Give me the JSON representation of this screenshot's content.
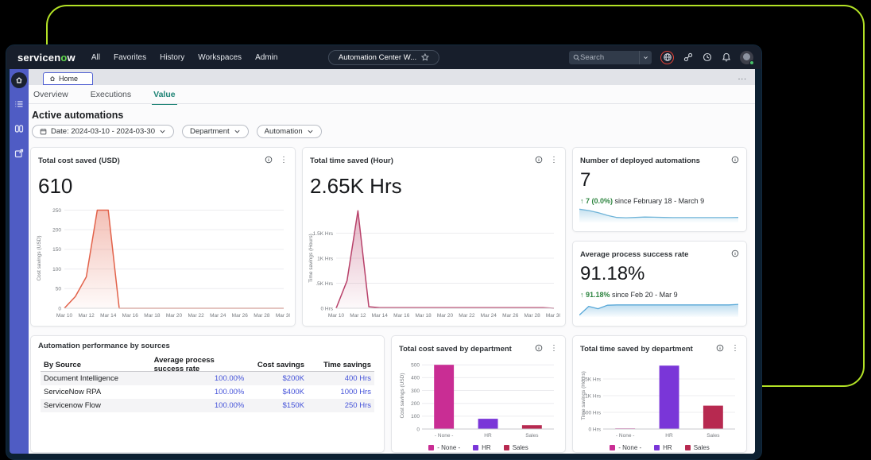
{
  "header": {
    "logo_prefix": "servicen",
    "logo_accent": "o",
    "logo_suffix": "w",
    "nav": [
      "All",
      "Favorites",
      "History",
      "Workspaces",
      "Admin"
    ],
    "workspace_pill": "Automation Center W...",
    "search_placeholder": "Search"
  },
  "tab_strip": {
    "home_tab": "Home",
    "overflow": "..."
  },
  "page": {
    "tabs": [
      "Overview",
      "Executions",
      "Value"
    ],
    "active_tab": "Value",
    "title": "Active automations",
    "filters": {
      "date": "Date: 2024-03-10 - 2024-03-30",
      "department": "Department",
      "automation": "Automation"
    }
  },
  "cards": {
    "cost": {
      "title": "Total cost saved (USD)",
      "value": "610"
    },
    "time": {
      "title": "Total time saved (Hour)",
      "value": "2.65K Hrs"
    },
    "deployed": {
      "title": "Number of deployed automations",
      "value": "7",
      "trend_change": "↑ 7 (0.0%)",
      "trend_period": "since February 18 - March 9"
    },
    "success": {
      "title": "Average process success rate",
      "value": "91.18%",
      "trend_change": "↑ 91.18%",
      "trend_period": "since Feb 20 - Mar 9"
    },
    "sources": {
      "title": "Automation performance by sources"
    },
    "cost_dept": {
      "title": "Total cost saved by department"
    },
    "time_dept": {
      "title": "Total time saved by department"
    }
  },
  "table": {
    "columns": [
      "By Source",
      "Average process success rate",
      "Cost savings",
      "Time savings"
    ],
    "rows": [
      [
        "Document Intelligence",
        "100.00%",
        "$200K",
        "400 Hrs"
      ],
      [
        "ServiceNow RPA",
        "100.00%",
        "$400K",
        "1000 Hrs"
      ],
      [
        "Servicenow Flow",
        "100.00%",
        "$150K",
        "250 Hrs"
      ]
    ]
  },
  "colors": {
    "accent_outline": "#b3e226",
    "sidebar": "#4f5cc4",
    "link_blue": "#4553d9",
    "tab_active": "#1f8476",
    "trend_green": "#2e8540"
  },
  "chart_data": [
    {
      "type": "area",
      "title": "Total cost saved (USD)",
      "x": [
        "Mar 10",
        "Mar 11",
        "Mar 12",
        "Mar 13",
        "Mar 14",
        "Mar 15",
        "Mar 16",
        "Mar 17",
        "Mar 18",
        "Mar 19",
        "Mar 20",
        "Mar 21",
        "Mar 22",
        "Mar 23",
        "Mar 24",
        "Mar 25",
        "Mar 26",
        "Mar 27",
        "Mar 28",
        "Mar 29",
        "Mar 30"
      ],
      "values": [
        0,
        30,
        80,
        250,
        250,
        0,
        0,
        0,
        0,
        0,
        0,
        0,
        0,
        0,
        0,
        0,
        0,
        0,
        0,
        0,
        0
      ],
      "x_tick_every": 2,
      "y_ticks": [
        [
          0,
          "0"
        ],
        [
          50,
          "50"
        ],
        [
          100,
          "100"
        ],
        [
          150,
          "150"
        ],
        [
          200,
          "200"
        ],
        [
          250,
          "250"
        ]
      ],
      "ylim": [
        0,
        255
      ],
      "ylabel": "Cost savings (USD)",
      "color": "#e2624a",
      "grid": true,
      "legend_position": "none"
    },
    {
      "type": "area",
      "title": "Total time saved (Hour)",
      "x": [
        "Mar 10",
        "Mar 11",
        "Mar 12",
        "Mar 13",
        "Mar 14",
        "Mar 15",
        "Mar 16",
        "Mar 17",
        "Mar 18",
        "Mar 19",
        "Mar 20",
        "Mar 21",
        "Mar 22",
        "Mar 23",
        "Mar 24",
        "Mar 25",
        "Mar 26",
        "Mar 27",
        "Mar 28",
        "Mar 29",
        "Mar 30"
      ],
      "values": [
        0,
        550,
        1950,
        30,
        12,
        12,
        12,
        12,
        12,
        12,
        12,
        12,
        12,
        12,
        12,
        12,
        12,
        12,
        12,
        12,
        0
      ],
      "x_tick_every": 2,
      "y_ticks": [
        [
          0,
          "0 Hrs"
        ],
        [
          500,
          ".5K Hrs"
        ],
        [
          1000,
          "1K Hrs"
        ],
        [
          1500,
          "1.5K Hrs"
        ]
      ],
      "ylim": [
        0,
        2000
      ],
      "ylabel": "Time savings (Hours)",
      "color": "#b8416a",
      "grid": true,
      "legend_position": "none"
    },
    {
      "type": "sparkline",
      "title": "Number of deployed automations trend",
      "values": [
        3.4,
        3.0,
        2.4,
        1.6,
        1.0,
        0.9,
        1.0,
        1.1,
        1.05,
        1.0,
        0.95,
        0.95,
        0.95,
        0.95,
        0.95,
        0.95,
        0.95,
        1.0
      ],
      "ylim": [
        0,
        6
      ],
      "color": "#6fb4d8"
    },
    {
      "type": "sparkline",
      "title": "Average process success rate trend",
      "values": [
        0.1,
        2.6,
        1.9,
        2.9,
        3.0,
        3.0,
        3.0,
        3.0,
        3.0,
        3.0,
        3.0,
        3.0,
        3.0,
        3.0,
        3.0,
        3.0,
        3.0,
        3.15
      ],
      "ylim": [
        0,
        5
      ],
      "color": "#58a8d8"
    },
    {
      "type": "bar",
      "title": "Total cost saved by department",
      "categories": [
        "- None -",
        "HR",
        "Sales"
      ],
      "values": [
        500,
        80,
        30
      ],
      "colors": [
        "#c92d94",
        "#7a36d8",
        "#b72950"
      ],
      "y_ticks": [
        [
          0,
          "0"
        ],
        [
          100,
          "100"
        ],
        [
          200,
          "200"
        ],
        [
          300,
          "300"
        ],
        [
          400,
          "400"
        ],
        [
          500,
          "500"
        ]
      ],
      "ylim": [
        0,
        520
      ],
      "ylabel": "Cost savings (USD)",
      "legend": [
        "- None -",
        "HR",
        "Sales"
      ],
      "legend_position": "bottom",
      "grid": true
    },
    {
      "type": "bar",
      "title": "Total time saved by department",
      "categories": [
        "- None -",
        "HR",
        "Sales"
      ],
      "values": [
        20,
        1900,
        700
      ],
      "colors": [
        "#c92d94",
        "#7a36d8",
        "#b72950"
      ],
      "y_ticks": [
        [
          0,
          "0 Hrs"
        ],
        [
          500,
          "500 Hrs"
        ],
        [
          1000,
          "1K Hrs"
        ],
        [
          1500,
          "1.5K Hrs"
        ]
      ],
      "ylim": [
        0,
        2000
      ],
      "ylabel": "Time savings (Hours)",
      "legend": [
        "- None -",
        "HR",
        "Sales"
      ],
      "legend_position": "bottom",
      "grid": true
    }
  ]
}
